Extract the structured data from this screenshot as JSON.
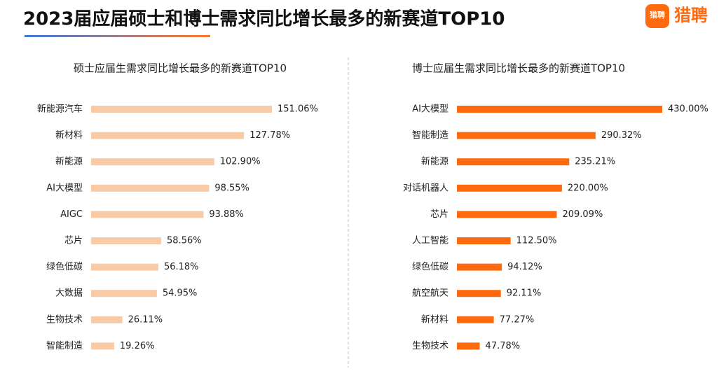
{
  "header": {
    "title": "2023届应届硕士和博士需求同比增长最多的新赛道TOP10",
    "logo_icon_text": "猎聘",
    "logo_text": "猎聘"
  },
  "chart_data": [
    {
      "type": "bar",
      "orientation": "horizontal",
      "title": "硕士应届生需求同比增长最多的新赛道TOP10",
      "color": "#f8caa6",
      "categories": [
        "新能源汽车",
        "新材料",
        "新能源",
        "AI大模型",
        "AIGC",
        "芯片",
        "绿色低碳",
        "大数据",
        "生物技术",
        "智能制造"
      ],
      "values": [
        151.06,
        127.78,
        102.9,
        98.55,
        93.88,
        58.56,
        56.18,
        54.95,
        26.11,
        19.26
      ],
      "value_labels": [
        "151.06%",
        "127.78%",
        "102.90%",
        "98.55%",
        "93.88%",
        "58.56%",
        "56.18%",
        "54.95%",
        "26.11%",
        "19.26%"
      ]
    },
    {
      "type": "bar",
      "orientation": "horizontal",
      "title": "博士应届生需求同比增长最多的新赛道TOP10",
      "color": "#ff6a0f",
      "categories": [
        "AI大模型",
        "智能制造",
        "新能源",
        "对话机器人",
        "芯片",
        "人工智能",
        "绿色低碳",
        "航空航天",
        "新材料",
        "生物技术"
      ],
      "values": [
        430.0,
        290.32,
        235.21,
        220.0,
        209.09,
        112.5,
        94.12,
        92.11,
        77.27,
        47.78
      ],
      "value_labels": [
        "430.00%",
        "290.32%",
        "235.21%",
        "220.00%",
        "209.09%",
        "112.50%",
        "94.12%",
        "92.11%",
        "77.27%",
        "47.78%"
      ]
    }
  ]
}
